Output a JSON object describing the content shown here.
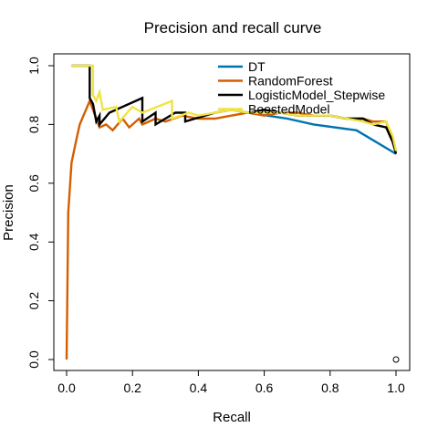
{
  "chart_data": {
    "type": "line",
    "title": "Precision and recall curve",
    "xlabel": "Recall",
    "ylabel": "Precision",
    "xlim": [
      0,
      1
    ],
    "ylim": [
      0,
      1
    ],
    "xticks": [
      "0.0",
      "0.2",
      "0.4",
      "0.6",
      "0.8",
      "1.0"
    ],
    "yticks": [
      "0.0",
      "0.2",
      "0.4",
      "0.6",
      "0.8",
      "1.0"
    ],
    "legend_position": "top-right",
    "grid": false,
    "series": [
      {
        "name": "DT",
        "color": "#0072B2",
        "points": [
          [
            0.55,
            0.84
          ],
          [
            0.67,
            0.82
          ],
          [
            0.75,
            0.8
          ],
          [
            0.88,
            0.78
          ],
          [
            1.0,
            0.7
          ]
        ]
      },
      {
        "name": "RandomForest",
        "color": "#D55E00",
        "points": [
          [
            0.0,
            0.0
          ],
          [
            0.005,
            0.5
          ],
          [
            0.015,
            0.67
          ],
          [
            0.03,
            0.75
          ],
          [
            0.04,
            0.8
          ],
          [
            0.07,
            0.88
          ],
          [
            0.09,
            0.82
          ],
          [
            0.1,
            0.79
          ],
          [
            0.12,
            0.8
          ],
          [
            0.14,
            0.78
          ],
          [
            0.17,
            0.82
          ],
          [
            0.19,
            0.79
          ],
          [
            0.22,
            0.82
          ],
          [
            0.23,
            0.8
          ],
          [
            0.27,
            0.82
          ],
          [
            0.3,
            0.81
          ],
          [
            0.35,
            0.83
          ],
          [
            0.4,
            0.82
          ],
          [
            0.45,
            0.82
          ],
          [
            0.5,
            0.83
          ],
          [
            0.55,
            0.84
          ],
          [
            0.6,
            0.83
          ],
          [
            0.65,
            0.84
          ],
          [
            0.7,
            0.84
          ],
          [
            0.75,
            0.83
          ],
          [
            0.8,
            0.83
          ],
          [
            0.85,
            0.82
          ],
          [
            0.9,
            0.82
          ],
          [
            0.93,
            0.81
          ],
          [
            0.97,
            0.81
          ],
          [
            0.99,
            0.74
          ],
          [
            1.0,
            0.71
          ]
        ]
      },
      {
        "name": "LogisticModel_Stepwise",
        "color": "#000000",
        "points": [
          [
            0.015,
            1.0
          ],
          [
            0.07,
            1.0
          ],
          [
            0.07,
            0.89
          ],
          [
            0.08,
            0.87
          ],
          [
            0.09,
            0.81
          ],
          [
            0.1,
            0.83
          ],
          [
            0.1,
            0.8
          ],
          [
            0.13,
            0.84
          ],
          [
            0.23,
            0.89
          ],
          [
            0.23,
            0.81
          ],
          [
            0.27,
            0.84
          ],
          [
            0.27,
            0.8
          ],
          [
            0.33,
            0.84
          ],
          [
            0.36,
            0.84
          ],
          [
            0.36,
            0.81
          ],
          [
            0.45,
            0.84
          ],
          [
            0.5,
            0.85
          ],
          [
            0.55,
            0.84
          ],
          [
            0.6,
            0.85
          ],
          [
            0.65,
            0.84
          ],
          [
            0.7,
            0.83
          ],
          [
            0.8,
            0.83
          ],
          [
            0.85,
            0.82
          ],
          [
            0.9,
            0.82
          ],
          [
            0.93,
            0.8
          ],
          [
            0.97,
            0.79
          ],
          [
            0.99,
            0.74
          ],
          [
            1.0,
            0.7
          ]
        ]
      },
      {
        "name": "BoostedModel",
        "color": "#F0E442",
        "points": [
          [
            0.015,
            1.0
          ],
          [
            0.08,
            1.0
          ],
          [
            0.08,
            0.9
          ],
          [
            0.09,
            0.88
          ],
          [
            0.1,
            0.91
          ],
          [
            0.11,
            0.85
          ],
          [
            0.15,
            0.86
          ],
          [
            0.16,
            0.81
          ],
          [
            0.2,
            0.86
          ],
          [
            0.23,
            0.84
          ],
          [
            0.32,
            0.88
          ],
          [
            0.32,
            0.82
          ],
          [
            0.37,
            0.84
          ],
          [
            0.4,
            0.83
          ],
          [
            0.45,
            0.84
          ],
          [
            0.5,
            0.85
          ],
          [
            0.55,
            0.84
          ],
          [
            0.6,
            0.84
          ],
          [
            0.65,
            0.84
          ],
          [
            0.7,
            0.83
          ],
          [
            0.75,
            0.83
          ],
          [
            0.8,
            0.83
          ],
          [
            0.85,
            0.82
          ],
          [
            0.9,
            0.81
          ],
          [
            0.93,
            0.8
          ],
          [
            0.97,
            0.81
          ],
          [
            0.99,
            0.76
          ],
          [
            1.0,
            0.71
          ]
        ]
      }
    ],
    "markers": [
      {
        "x": 1.0,
        "y": 0.0,
        "shape": "open-circle",
        "color": "#000000"
      }
    ]
  }
}
